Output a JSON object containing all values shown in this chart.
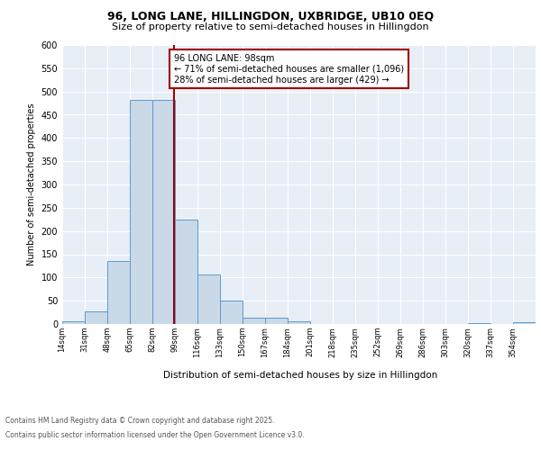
{
  "title1": "96, LONG LANE, HILLINGDON, UXBRIDGE, UB10 0EQ",
  "title2": "Size of property relative to semi-detached houses in Hillingdon",
  "xlabel": "Distribution of semi-detached houses by size in Hillingdon",
  "ylabel": "Number of semi-detached properties",
  "footnote1": "Contains HM Land Registry data © Crown copyright and database right 2025.",
  "footnote2": "Contains public sector information licensed under the Open Government Licence v3.0.",
  "bar_edges": [
    14,
    31,
    48,
    65,
    82,
    99,
    116,
    133,
    150,
    167,
    184,
    201,
    218,
    235,
    252,
    269,
    286,
    303,
    320,
    337,
    354
  ],
  "bar_heights": [
    5,
    27,
    135,
    482,
    482,
    225,
    106,
    51,
    14,
    13,
    5,
    0,
    0,
    0,
    0,
    0,
    0,
    0,
    2,
    0,
    3
  ],
  "bar_color": "#c9d9e8",
  "bar_edge_color": "#5b9bd5",
  "vline_x": 98,
  "vline_color": "#a00000",
  "annotation_text": "96 LONG LANE: 98sqm\n← 71% of semi-detached houses are smaller (1,096)\n28% of semi-detached houses are larger (429) →",
  "annotation_box_color": "#a00000",
  "ylim": [
    0,
    600
  ],
  "yticks": [
    0,
    50,
    100,
    150,
    200,
    250,
    300,
    350,
    400,
    450,
    500,
    550,
    600
  ],
  "bg_color": "#e8eef5",
  "tick_labels": [
    "14sqm",
    "31sqm",
    "48sqm",
    "65sqm",
    "82sqm",
    "99sqm",
    "116sqm",
    "133sqm",
    "150sqm",
    "167sqm",
    "184sqm",
    "201sqm",
    "218sqm",
    "235sqm",
    "252sqm",
    "269sqm",
    "286sqm",
    "303sqm",
    "320sqm",
    "337sqm",
    "354sqm"
  ]
}
